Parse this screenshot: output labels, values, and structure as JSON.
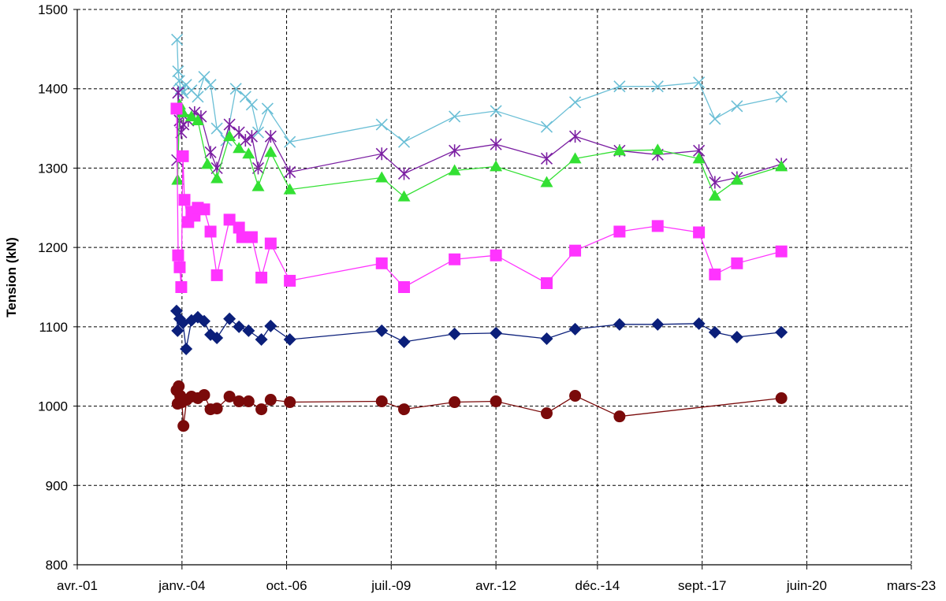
{
  "chart_data": {
    "type": "line",
    "title": "",
    "xlabel": "",
    "ylabel": "Tension (kN)",
    "ylim": [
      800,
      1500
    ],
    "yticks": [
      800,
      900,
      1000,
      1100,
      1200,
      1300,
      1400,
      1500
    ],
    "xlim": [
      "2001-04-01",
      "2023-03-01"
    ],
    "xticks": [
      {
        "date": "2001-04-01",
        "label": "avr.-01"
      },
      {
        "date": "2004-01-01",
        "label": "janv.-04"
      },
      {
        "date": "2006-10-01",
        "label": "oct.-06"
      },
      {
        "date": "2009-07-01",
        "label": "juil.-09"
      },
      {
        "date": "2012-04-01",
        "label": "avr.-12"
      },
      {
        "date": "2014-12-01",
        "label": "déc.-14"
      },
      {
        "date": "2017-09-01",
        "label": "sept.-17"
      },
      {
        "date": "2020-06-01",
        "label": "juin-20"
      },
      {
        "date": "2023-03-01",
        "label": "mars-23"
      }
    ],
    "grid": true,
    "legend": "none",
    "series": [
      {
        "color": "#6BBFD6",
        "marker": "x",
        "points": [
          [
            "2003-11-15",
            1462
          ],
          [
            "2003-11-25",
            1422
          ],
          [
            "2003-12-05",
            1410
          ],
          [
            "2003-12-20",
            1400
          ],
          [
            "2004-01-10",
            1395
          ],
          [
            "2004-02-10",
            1405
          ],
          [
            "2004-04-01",
            1398
          ],
          [
            "2004-06-01",
            1390
          ],
          [
            "2004-08-01",
            1415
          ],
          [
            "2004-10-01",
            1405
          ],
          [
            "2004-12-01",
            1350
          ],
          [
            "2005-03-01",
            1335
          ],
          [
            "2005-06-01",
            1400
          ],
          [
            "2005-09-01",
            1390
          ],
          [
            "2005-11-01",
            1380
          ],
          [
            "2006-01-01",
            1345
          ],
          [
            "2006-04-01",
            1375
          ],
          [
            "2006-11-01",
            1333
          ],
          [
            "2009-04-01",
            1355
          ],
          [
            "2009-11-01",
            1333
          ],
          [
            "2011-03-01",
            1365
          ],
          [
            "2012-04-01",
            1372
          ],
          [
            "2013-08-01",
            1352
          ],
          [
            "2014-05-01",
            1383
          ],
          [
            "2015-07-01",
            1403
          ],
          [
            "2016-07-01",
            1403
          ],
          [
            "2017-08-01",
            1408
          ],
          [
            "2018-01-01",
            1362
          ],
          [
            "2018-08-01",
            1378
          ],
          [
            "2019-10-01",
            1390
          ]
        ]
      },
      {
        "color": "#7B1FA2",
        "marker": "star",
        "points": [
          [
            "2003-11-15",
            1310
          ],
          [
            "2003-11-25",
            1395
          ],
          [
            "2003-12-10",
            1360
          ],
          [
            "2003-12-25",
            1345
          ],
          [
            "2004-01-15",
            1355
          ],
          [
            "2004-03-01",
            1360
          ],
          [
            "2004-05-01",
            1370
          ],
          [
            "2004-07-01",
            1365
          ],
          [
            "2004-10-01",
            1320
          ],
          [
            "2004-12-01",
            1300
          ],
          [
            "2005-04-01",
            1355
          ],
          [
            "2005-07-01",
            1345
          ],
          [
            "2005-09-01",
            1335
          ],
          [
            "2005-11-01",
            1340
          ],
          [
            "2006-01-01",
            1300
          ],
          [
            "2006-05-01",
            1340
          ],
          [
            "2006-11-01",
            1295
          ],
          [
            "2009-04-01",
            1318
          ],
          [
            "2009-11-01",
            1293
          ],
          [
            "2011-03-01",
            1322
          ],
          [
            "2012-04-01",
            1330
          ],
          [
            "2013-08-01",
            1312
          ],
          [
            "2014-05-01",
            1340
          ],
          [
            "2015-07-01",
            1322
          ],
          [
            "2016-07-01",
            1317
          ],
          [
            "2017-08-01",
            1322
          ],
          [
            "2018-01-01",
            1282
          ],
          [
            "2018-08-01",
            1288
          ],
          [
            "2019-10-01",
            1305
          ]
        ]
      },
      {
        "color": "#33E033",
        "marker": "triangle",
        "points": [
          [
            "2003-11-20",
            1285
          ],
          [
            "2003-12-10",
            1380
          ],
          [
            "2004-01-10",
            1370
          ],
          [
            "2004-04-01",
            1365
          ],
          [
            "2004-06-01",
            1360
          ],
          [
            "2004-09-01",
            1305
          ],
          [
            "2004-12-01",
            1287
          ],
          [
            "2005-04-01",
            1340
          ],
          [
            "2005-07-01",
            1325
          ],
          [
            "2005-10-01",
            1318
          ],
          [
            "2006-01-01",
            1277
          ],
          [
            "2006-05-01",
            1320
          ],
          [
            "2006-11-01",
            1273
          ],
          [
            "2009-04-01",
            1288
          ],
          [
            "2009-11-01",
            1264
          ],
          [
            "2011-03-01",
            1297
          ],
          [
            "2012-04-01",
            1302
          ],
          [
            "2013-08-01",
            1282
          ],
          [
            "2014-05-01",
            1312
          ],
          [
            "2015-07-01",
            1322
          ],
          [
            "2016-07-01",
            1323
          ],
          [
            "2017-08-01",
            1312
          ],
          [
            "2018-01-01",
            1265
          ],
          [
            "2018-08-01",
            1285
          ],
          [
            "2019-10-01",
            1302
          ]
        ]
      },
      {
        "color": "#FF33FF",
        "marker": "square",
        "points": [
          [
            "2003-11-10",
            1375
          ],
          [
            "2003-11-25",
            1190
          ],
          [
            "2003-12-10",
            1175
          ],
          [
            "2003-12-25",
            1150
          ],
          [
            "2004-01-10",
            1315
          ],
          [
            "2004-01-25",
            1260
          ],
          [
            "2004-03-01",
            1232
          ],
          [
            "2004-04-01",
            1245
          ],
          [
            "2004-05-01",
            1240
          ],
          [
            "2004-06-01",
            1250
          ],
          [
            "2004-08-01",
            1248
          ],
          [
            "2004-10-01",
            1220
          ],
          [
            "2004-12-01",
            1165
          ],
          [
            "2005-04-01",
            1235
          ],
          [
            "2005-07-01",
            1225
          ],
          [
            "2005-08-01",
            1213
          ],
          [
            "2005-11-01",
            1213
          ],
          [
            "2006-02-01",
            1162
          ],
          [
            "2006-05-01",
            1205
          ],
          [
            "2006-11-01",
            1158
          ],
          [
            "2009-04-01",
            1180
          ],
          [
            "2009-11-01",
            1150
          ],
          [
            "2011-03-01",
            1185
          ],
          [
            "2012-04-01",
            1190
          ],
          [
            "2013-08-01",
            1155
          ],
          [
            "2014-05-01",
            1196
          ],
          [
            "2015-07-01",
            1220
          ],
          [
            "2016-07-01",
            1227
          ],
          [
            "2017-08-01",
            1219
          ],
          [
            "2018-01-01",
            1166
          ],
          [
            "2018-08-01",
            1180
          ],
          [
            "2019-10-01",
            1195
          ]
        ]
      },
      {
        "color": "#0B1F7A",
        "marker": "diamond",
        "points": [
          [
            "2003-11-10",
            1120
          ],
          [
            "2003-11-20",
            1095
          ],
          [
            "2003-12-10",
            1110
          ],
          [
            "2004-01-10",
            1105
          ],
          [
            "2004-02-10",
            1072
          ],
          [
            "2004-04-01",
            1108
          ],
          [
            "2004-06-01",
            1112
          ],
          [
            "2004-08-01",
            1107
          ],
          [
            "2004-10-01",
            1090
          ],
          [
            "2004-12-01",
            1086
          ],
          [
            "2005-04-01",
            1110
          ],
          [
            "2005-07-01",
            1100
          ],
          [
            "2005-10-01",
            1095
          ],
          [
            "2006-02-01",
            1084
          ],
          [
            "2006-05-01",
            1101
          ],
          [
            "2006-11-01",
            1084
          ],
          [
            "2009-04-01",
            1095
          ],
          [
            "2009-11-01",
            1081
          ],
          [
            "2011-03-01",
            1091
          ],
          [
            "2012-04-01",
            1092
          ],
          [
            "2013-08-01",
            1085
          ],
          [
            "2014-05-01",
            1097
          ],
          [
            "2015-07-01",
            1103
          ],
          [
            "2016-07-01",
            1103
          ],
          [
            "2017-08-01",
            1104
          ],
          [
            "2018-01-01",
            1093
          ],
          [
            "2018-08-01",
            1087
          ],
          [
            "2019-10-01",
            1093
          ]
        ]
      },
      {
        "color": "#7A0A0A",
        "marker": "circle",
        "points": [
          [
            "2003-11-10",
            1020
          ],
          [
            "2003-11-20",
            1003
          ],
          [
            "2003-12-01",
            1025
          ],
          [
            "2003-12-15",
            1013
          ],
          [
            "2004-01-01",
            1005
          ],
          [
            "2004-01-15",
            975
          ],
          [
            "2004-02-15",
            1008
          ],
          [
            "2004-04-01",
            1012
          ],
          [
            "2004-06-01",
            1010
          ],
          [
            "2004-08-01",
            1014
          ],
          [
            "2004-10-01",
            996
          ],
          [
            "2004-12-01",
            997
          ],
          [
            "2005-04-01",
            1012
          ],
          [
            "2005-07-01",
            1006
          ],
          [
            "2005-10-01",
            1006
          ],
          [
            "2006-02-01",
            996
          ],
          [
            "2006-05-01",
            1008
          ],
          [
            "2006-11-01",
            1005
          ],
          [
            "2009-04-01",
            1006
          ],
          [
            "2009-11-01",
            996
          ],
          [
            "2011-03-01",
            1005
          ],
          [
            "2012-04-01",
            1006
          ],
          [
            "2013-08-01",
            991
          ],
          [
            "2014-05-01",
            1013
          ],
          [
            "2015-07-01",
            987
          ],
          [
            "2019-10-01",
            1010
          ]
        ]
      }
    ]
  }
}
